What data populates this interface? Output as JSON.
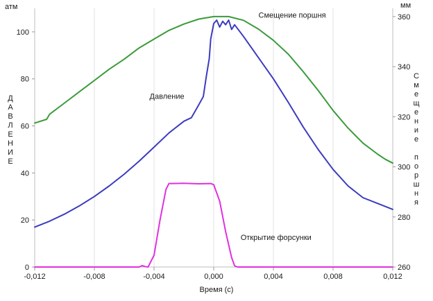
{
  "chart_data": {
    "type": "line",
    "xlabel": "Время (с)",
    "left_axis": {
      "label": "ДАВЛЕНИЕ",
      "unit": "атм",
      "ylim": [
        0,
        110
      ],
      "ticks": [
        0,
        20,
        40,
        60,
        80,
        100
      ],
      "tick_labels": [
        "0",
        "20",
        "40",
        "60",
        "80",
        "100"
      ]
    },
    "right_axis": {
      "label": "Смещение поршня",
      "unit": "мм",
      "ylim": [
        260,
        363.3
      ],
      "ticks": [
        260,
        280,
        300,
        320,
        340,
        360
      ],
      "tick_labels": [
        "260",
        "280",
        "300",
        "320",
        "340",
        "360"
      ]
    },
    "xlim": [
      -0.012,
      0.012
    ],
    "xticks": [
      -0.012,
      -0.008,
      -0.004,
      0.0,
      0.004,
      0.008,
      0.012
    ],
    "xtick_labels": [
      "-0,012",
      "-0,008",
      "-0,004",
      "0,000",
      "0,004",
      "0,008",
      "0,012"
    ],
    "grid": "vertical",
    "series": [
      {
        "name": "Смещение поршня",
        "axis": "right",
        "color": "#3a9a3a",
        "x": [
          -0.012,
          -0.0112,
          -0.011,
          -0.01,
          -0.009,
          -0.008,
          -0.007,
          -0.006,
          -0.005,
          -0.004,
          -0.003,
          -0.002,
          -0.001,
          0.0,
          0.001,
          0.002,
          0.003,
          0.004,
          0.005,
          0.006,
          0.007,
          0.008,
          0.009,
          0.01,
          0.011,
          0.0115,
          0.012
        ],
        "values": [
          317.5,
          319.0,
          321.0,
          325.5,
          330.0,
          334.5,
          339.0,
          343.0,
          347.5,
          351.0,
          354.5,
          357.0,
          359.0,
          360.0,
          360.0,
          358.5,
          355.0,
          350.5,
          345.0,
          338.0,
          330.5,
          322.5,
          315.5,
          309.5,
          305.0,
          303.0,
          301.5
        ]
      },
      {
        "name": "Давление",
        "axis": "left",
        "color": "#3b3bbf",
        "x": [
          -0.012,
          -0.011,
          -0.01,
          -0.009,
          -0.008,
          -0.007,
          -0.006,
          -0.005,
          -0.004,
          -0.003,
          -0.002,
          -0.0015,
          -0.001,
          -0.0007,
          -0.0005,
          -0.0003,
          -0.0002,
          0.0,
          0.0002,
          0.0004,
          0.0006,
          0.0008,
          0.001,
          0.0012,
          0.0014,
          0.002,
          0.003,
          0.004,
          0.005,
          0.006,
          0.007,
          0.008,
          0.009,
          0.01,
          0.011,
          0.012
        ],
        "values": [
          17.0,
          19.5,
          22.5,
          26.0,
          30.0,
          34.5,
          39.5,
          45.0,
          51.0,
          57.0,
          62.0,
          63.5,
          69.0,
          72.5,
          81.0,
          88.5,
          97.0,
          103.5,
          105.0,
          102.0,
          104.5,
          103.0,
          105.0,
          101.0,
          103.0,
          98.0,
          89.0,
          80.0,
          70.0,
          59.5,
          50.0,
          41.5,
          34.5,
          29.5,
          27.0,
          24.5
        ]
      },
      {
        "name": "Открытие форсунки",
        "axis": "left",
        "color": "#e030e0",
        "x": [
          -0.012,
          -0.005,
          -0.0048,
          -0.0046,
          -0.0044,
          -0.004,
          -0.0036,
          -0.0032,
          -0.003,
          -0.002,
          -0.001,
          -0.0002,
          0.0,
          0.0004,
          0.0008,
          0.0012,
          0.0014,
          0.0016,
          0.003,
          0.012
        ],
        "values": [
          0.0,
          0.0,
          0.6,
          0.2,
          0.0,
          5.0,
          20.0,
          33.0,
          35.5,
          35.6,
          35.4,
          35.5,
          35.0,
          28.0,
          15.0,
          4.0,
          0.5,
          0.0,
          0.0,
          0.0
        ]
      }
    ],
    "annotations": [
      {
        "text": "Смещение поршня",
        "x": 0.003,
        "y_right": 359.5,
        "axis": "right"
      },
      {
        "text": "Давление",
        "x": -0.0043,
        "y": 71.5,
        "axis": "left"
      },
      {
        "text": "Открытие форсунки",
        "x": 0.0018,
        "y": 11.5,
        "axis": "left"
      }
    ]
  }
}
